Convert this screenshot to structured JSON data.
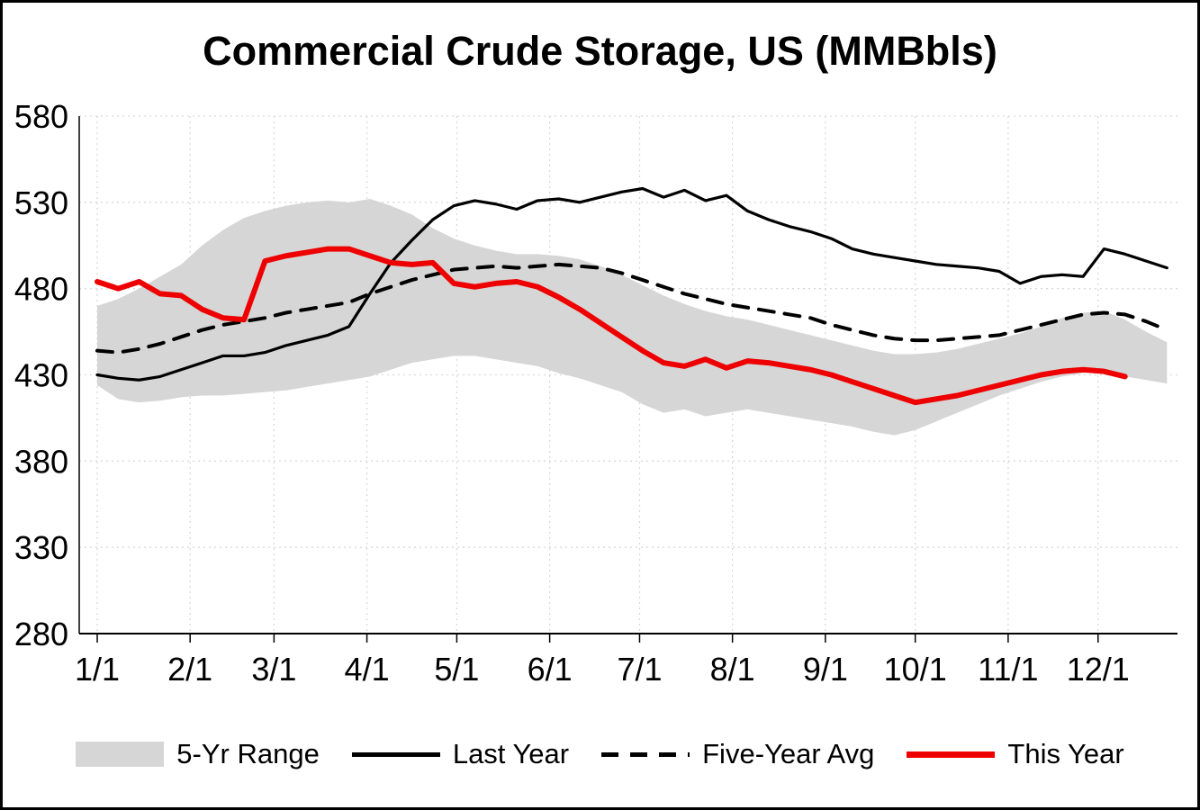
{
  "chart_data": {
    "type": "line",
    "title": "Commercial Crude Storage, US (MMBbls)",
    "xlabel": "",
    "ylabel": "",
    "ylim": [
      280,
      580
    ],
    "y_ticks": [
      580,
      530,
      480,
      430,
      380,
      330,
      280
    ],
    "x_ticks": [
      {
        "label": "1/1",
        "day": 1
      },
      {
        "label": "2/1",
        "day": 32
      },
      {
        "label": "3/1",
        "day": 60
      },
      {
        "label": "4/1",
        "day": 91
      },
      {
        "label": "5/1",
        "day": 121
      },
      {
        "label": "6/1",
        "day": 152
      },
      {
        "label": "7/1",
        "day": 182
      },
      {
        "label": "8/1",
        "day": 213
      },
      {
        "label": "9/1",
        "day": 244
      },
      {
        "label": "10/1",
        "day": 274
      },
      {
        "label": "11/1",
        "day": 305
      },
      {
        "label": "12/1",
        "day": 335
      }
    ],
    "x_unit": "weekly",
    "grid": true,
    "legend_position": "bottom",
    "colors": {
      "grid": "#d9d9d9",
      "axis": "#000000",
      "text": "#000000"
    },
    "series": [
      {
        "name": "5-Yr Range",
        "type": "band",
        "color": "#d6d6d6",
        "high": [
          470,
          474,
          480,
          487,
          494,
          505,
          514,
          521,
          525,
          528,
          530,
          531,
          530,
          532,
          528,
          523,
          515,
          509,
          505,
          502,
          500,
          500,
          499,
          497,
          493,
          488,
          482,
          476,
          471,
          467,
          464,
          462,
          459,
          456,
          453,
          450,
          447,
          444,
          442,
          442,
          443,
          445,
          448,
          451,
          454,
          458,
          463,
          466,
          467,
          462,
          455,
          449
        ],
        "low": [
          424,
          416,
          414,
          415,
          417,
          418,
          418,
          419,
          420,
          421,
          423,
          425,
          427,
          429,
          433,
          437,
          439,
          441,
          441,
          439,
          437,
          435,
          431,
          428,
          424,
          420,
          413,
          408,
          410,
          406,
          408,
          410,
          408,
          406,
          404,
          402,
          400,
          397,
          395,
          398,
          403,
          408,
          413,
          418,
          422,
          426,
          429,
          431,
          432,
          429,
          427,
          425
        ]
      },
      {
        "name": "Last Year",
        "type": "line",
        "style": "solid",
        "color": "#000000",
        "width": 3.2,
        "values": [
          430,
          428,
          427,
          429,
          433,
          437,
          441,
          441,
          443,
          447,
          450,
          453,
          458,
          477,
          495,
          508,
          520,
          528,
          531,
          529,
          526,
          531,
          532,
          530,
          533,
          536,
          538,
          533,
          537,
          531,
          534,
          525,
          520,
          516,
          513,
          509,
          503,
          500,
          498,
          496,
          494,
          493,
          492,
          490,
          483,
          487,
          488,
          487,
          503,
          500,
          496,
          492
        ]
      },
      {
        "name": "Five-Year Avg",
        "type": "line",
        "style": "dashed",
        "color": "#000000",
        "width": 4,
        "values": [
          444,
          443,
          445,
          448,
          452,
          456,
          459,
          461,
          463,
          466,
          468,
          470,
          472,
          477,
          481,
          485,
          488,
          491,
          492,
          493,
          492,
          493,
          494,
          493,
          492,
          489,
          485,
          481,
          477,
          474,
          471,
          469,
          467,
          465,
          463,
          459,
          456,
          453,
          451,
          450,
          450,
          451,
          452,
          453,
          456,
          459,
          462,
          465,
          466,
          465,
          461,
          456
        ]
      },
      {
        "name": "This Year",
        "type": "line",
        "style": "solid",
        "color": "#ee0000",
        "width": 6,
        "values": [
          484,
          480,
          484,
          477,
          476,
          468,
          463,
          462,
          496,
          499,
          501,
          503,
          503,
          499,
          495,
          494,
          495,
          483,
          481,
          483,
          484,
          481,
          475,
          468,
          460,
          452,
          444,
          437,
          435,
          439,
          434,
          438,
          437,
          435,
          433,
          430,
          426,
          422,
          418,
          414,
          416,
          418,
          421,
          424,
          427,
          430,
          432,
          433,
          432,
          429
        ]
      }
    ]
  }
}
